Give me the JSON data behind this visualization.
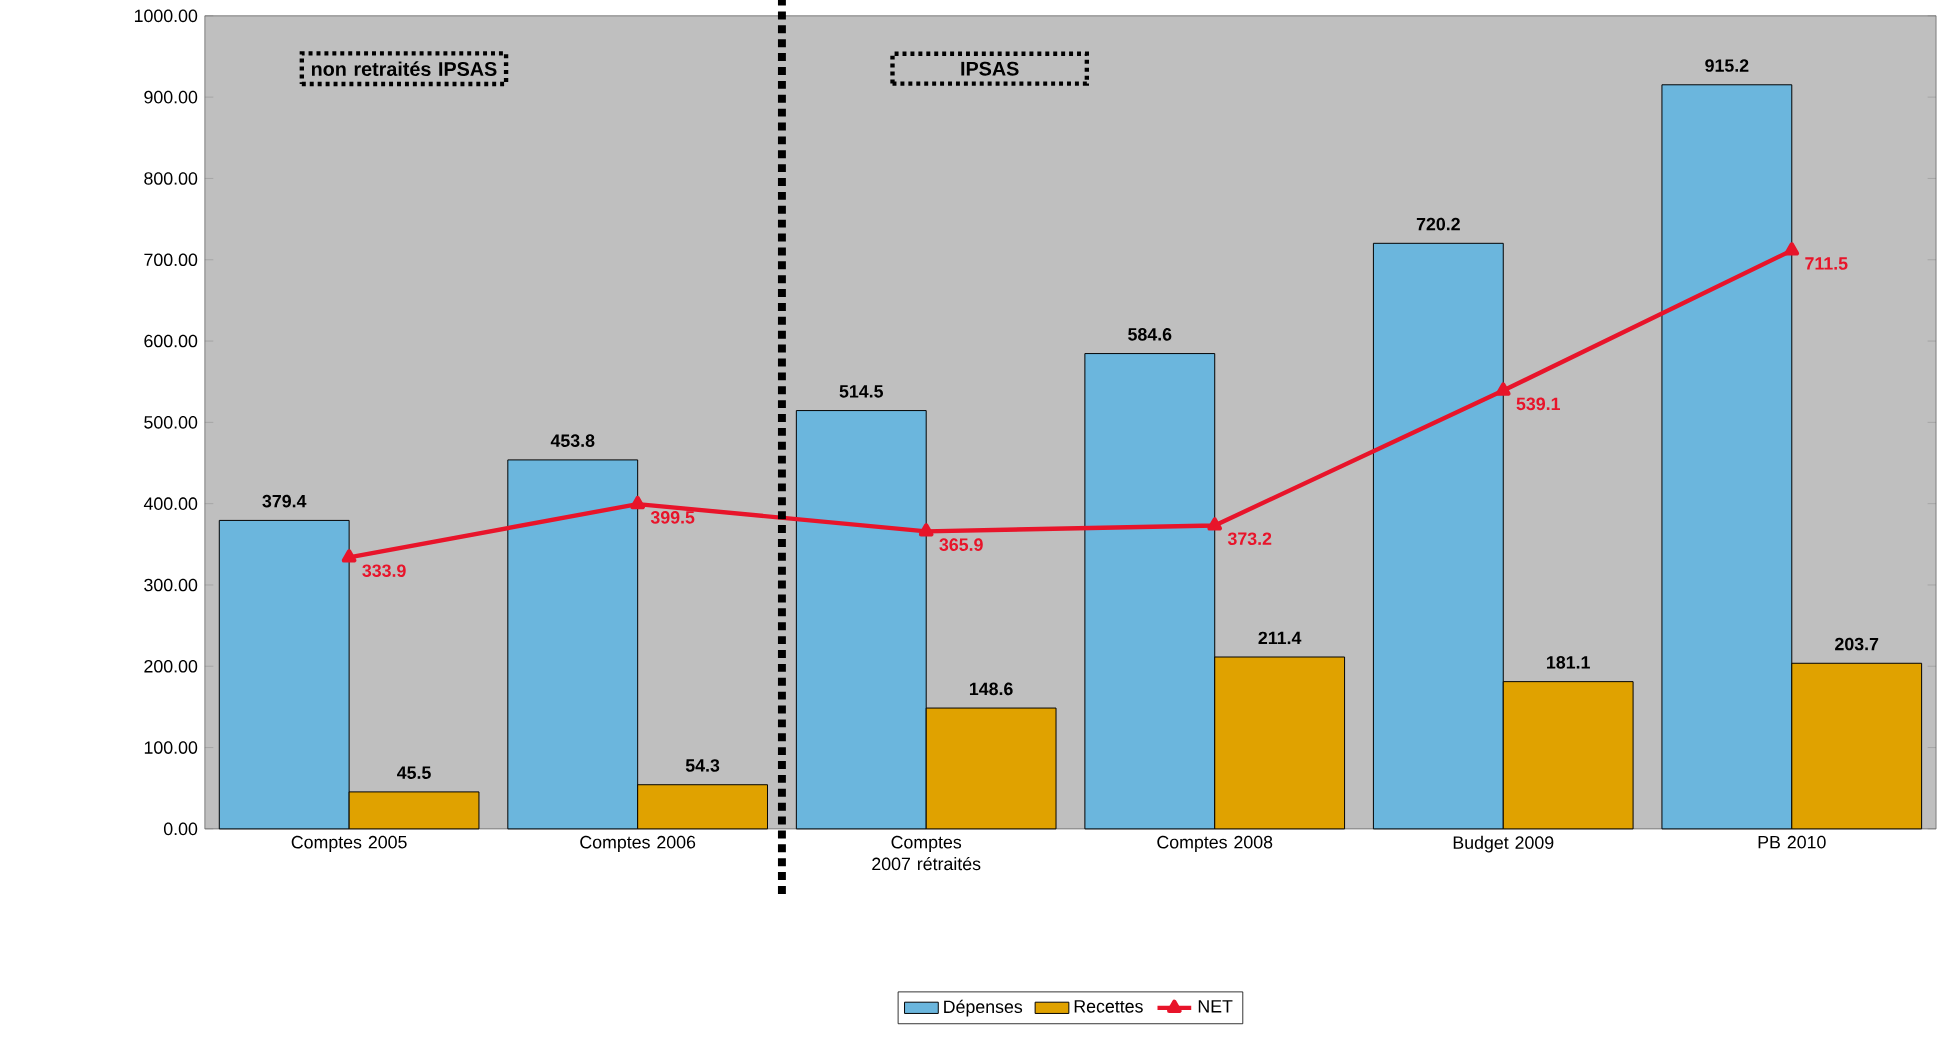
{
  "chart_data": {
    "type": "bar",
    "categories": [
      "Comptes 2005",
      "Comptes 2006",
      "Comptes 2007 rétraités",
      "Comptes 2008",
      "Budget 2009",
      "PB 2010"
    ],
    "series": [
      {
        "name": "Dépenses",
        "color": "#6bb6dd",
        "values": [
          379.4,
          453.8,
          514.5,
          584.6,
          720.2,
          915.2
        ]
      },
      {
        "name": "Recettes",
        "color": "#e0a200",
        "values": [
          45.5,
          54.3,
          148.6,
          211.4,
          181.1,
          203.7
        ]
      },
      {
        "name": "NET",
        "type": "line",
        "color": "#e8142a",
        "marker": "triangle",
        "values": [
          333.9,
          399.5,
          365.9,
          373.2,
          539.1,
          711.5
        ]
      }
    ],
    "ylim": [
      0,
      1000
    ],
    "yticks": [
      {
        "value": 0,
        "label": "0.00"
      },
      {
        "value": 100,
        "label": "100.00"
      },
      {
        "value": 200,
        "label": "200.00"
      },
      {
        "value": 300,
        "label": "300.00"
      },
      {
        "value": 400,
        "label": "400.00"
      },
      {
        "value": 500,
        "label": "500.00"
      },
      {
        "value": 600,
        "label": "600.00"
      },
      {
        "value": 700,
        "label": "700.00"
      },
      {
        "value": 800,
        "label": "800.00"
      },
      {
        "value": 900,
        "label": "900.00"
      },
      {
        "value": 1000,
        "label": "1000.00"
      }
    ],
    "data_labels": true,
    "legend": "bottom",
    "annotations": [
      "non retraités IPSAS",
      "IPSAS"
    ]
  }
}
